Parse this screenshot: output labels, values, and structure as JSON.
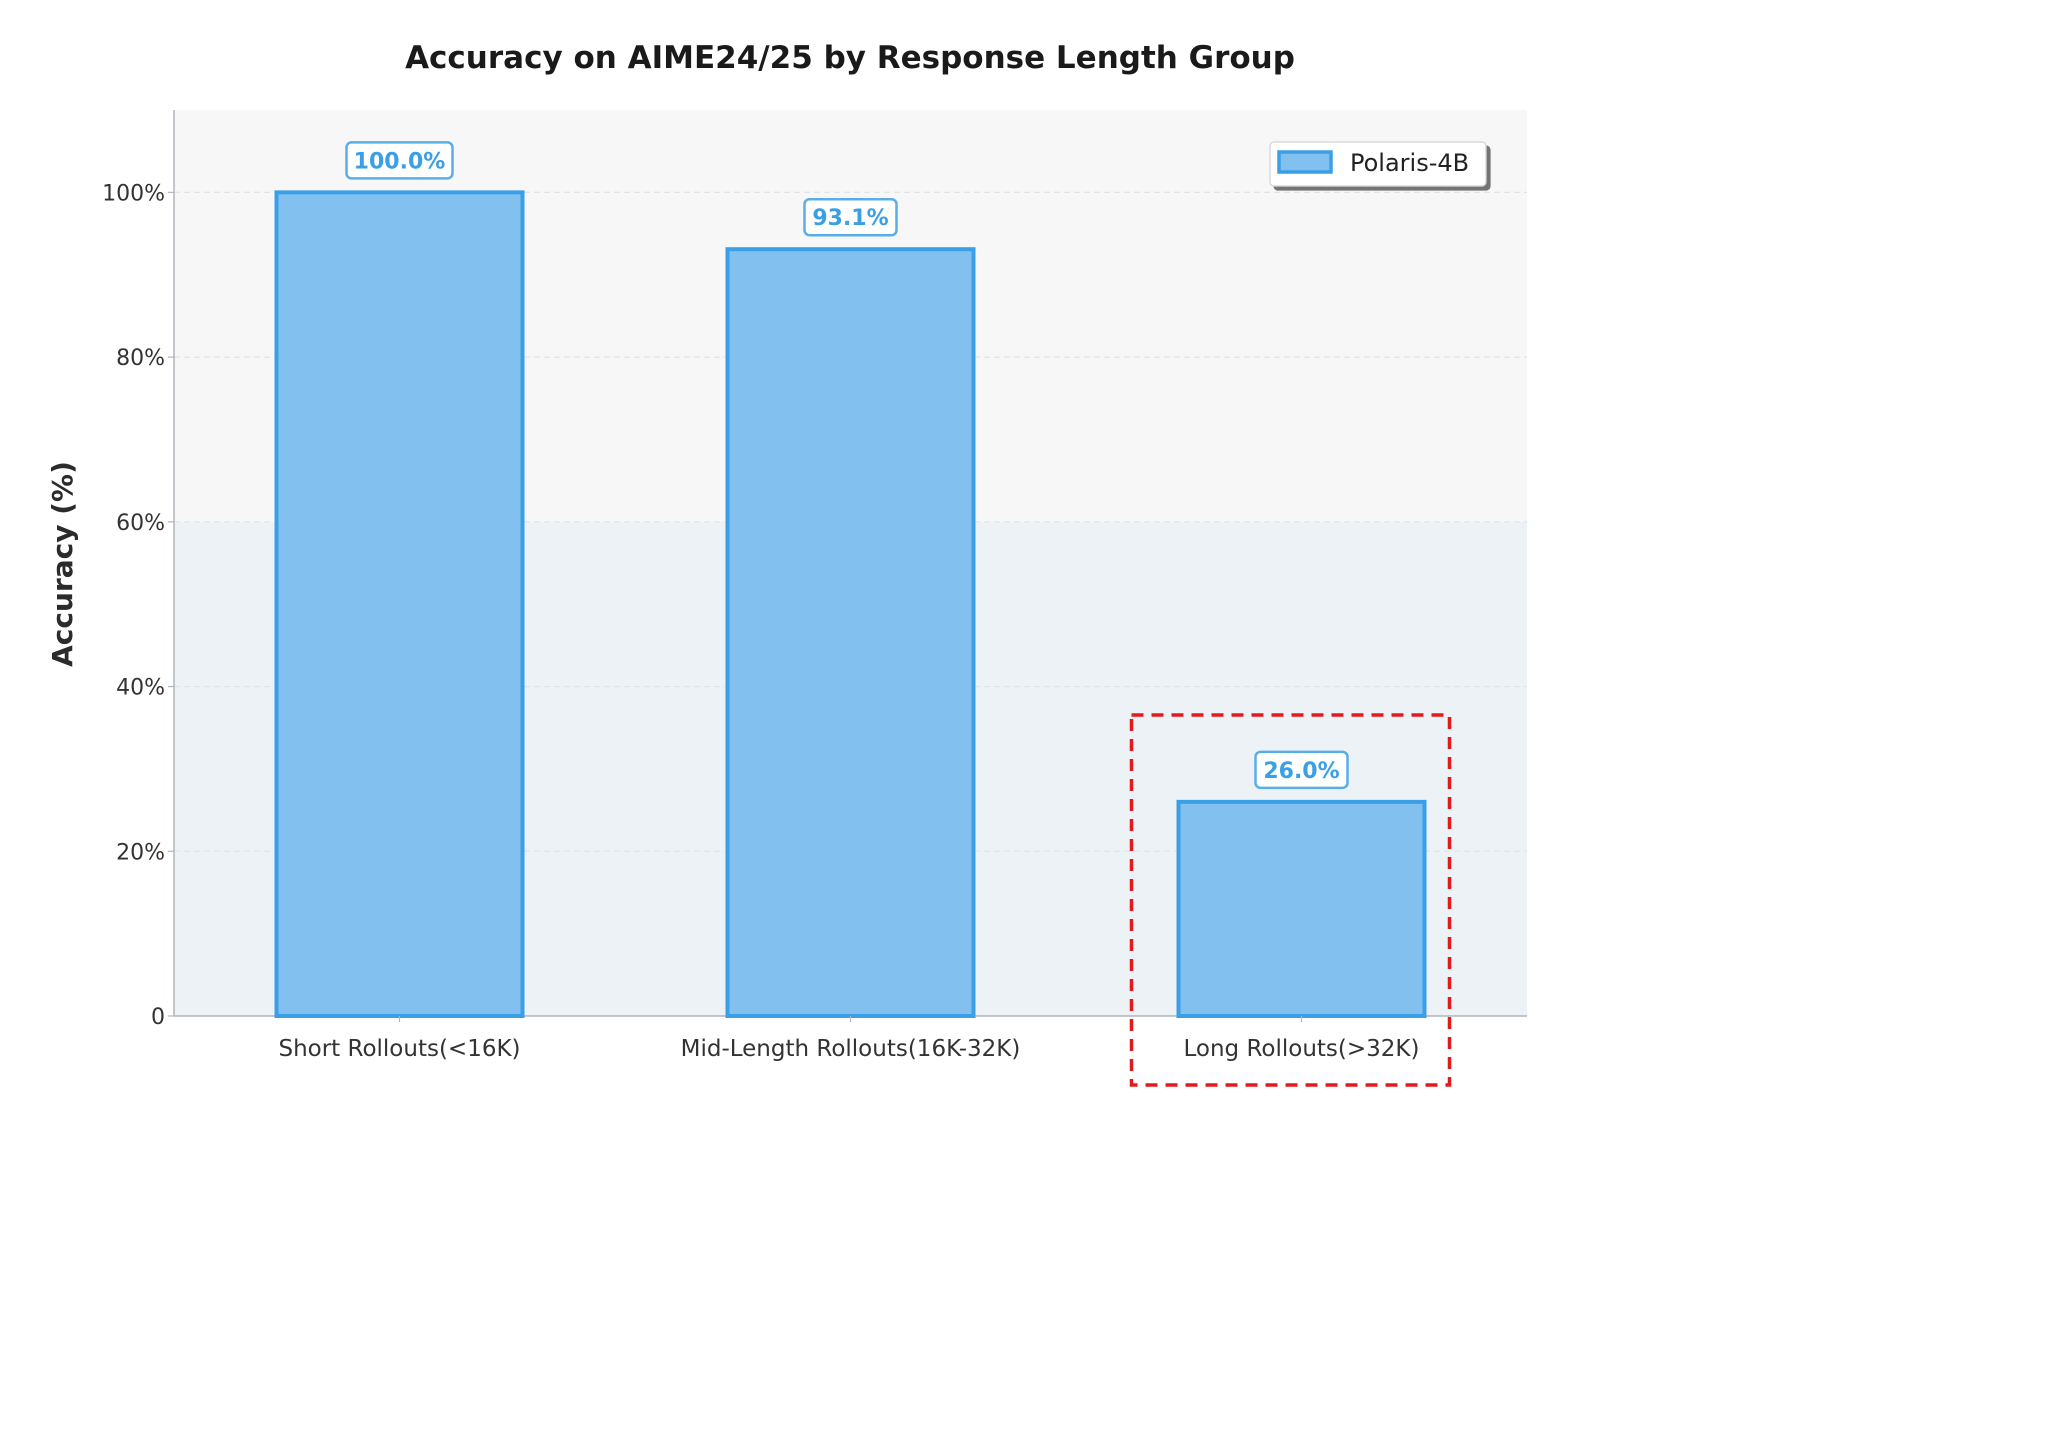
{
  "chart_data": {
    "type": "bar",
    "title": "Accuracy on AIME24/25 by Response Length Group",
    "ylabel": "Accuracy (%)",
    "xlabel": "",
    "categories": [
      "Short Rollouts(<16K)",
      "Mid-Length Rollouts(16K-32K)",
      "Long Rollouts(>32K)"
    ],
    "series": [
      {
        "name": "Polaris-4B",
        "values": [
          100.0,
          93.1,
          26.0
        ]
      }
    ],
    "data_labels": [
      "100.0%",
      "93.1%",
      "26.0%"
    ],
    "ylim": [
      0,
      110
    ],
    "yticks": [
      0,
      20,
      40,
      60,
      80,
      100
    ],
    "ytick_labels": [
      "0",
      "20%",
      "40%",
      "60%",
      "80%",
      "100%"
    ],
    "grid": "horizontal dashed",
    "legend": {
      "placement": "top-right",
      "entries": [
        "Polaris-4B"
      ]
    },
    "shaded_region": {
      "from": 0,
      "to": 60,
      "color": "#edf2f7"
    },
    "highlight": {
      "category_index": 2,
      "style": "red dashed box",
      "color": "#e31a1c"
    },
    "colors": {
      "bar_fill": "#82c1ef",
      "bar_edge": "#3a9fe6",
      "label_text": "#3a9fe6",
      "plot_bg": "#f7f7f8",
      "highlight": "#e31a1c"
    }
  }
}
